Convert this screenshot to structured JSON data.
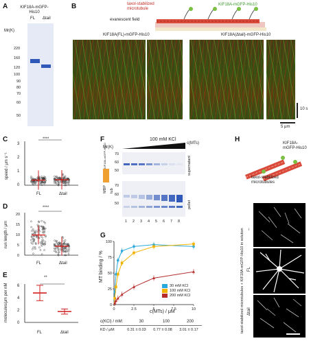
{
  "panels": [
    "A",
    "B",
    "C",
    "D",
    "E",
    "F",
    "G",
    "H"
  ],
  "panelA": {
    "title": "KIF18A-mGFP-His10",
    "lanes": [
      "FL",
      "Δtail"
    ],
    "mr_label": "Mr(K)",
    "markers": [
      "220",
      "160",
      "120",
      "100",
      "90",
      "80",
      "70",
      "60",
      "50"
    ]
  },
  "panelB": {
    "schematic_tubulin": "taxol-stabilized microtubule",
    "schematic_motor": "KIF18A-mGFP-His10",
    "schematic_field": "evanescent field",
    "left_title": "KIF18A(FL)-mGFP-His10",
    "right_title": "KIF18A(Δtail)-mGFP-His10",
    "time_scale": "10 s",
    "space_scale": "5 μm"
  },
  "panelC": {
    "ylabel": "speed / μm s⁻¹",
    "yticks": [
      "0",
      "1",
      "2",
      "3"
    ],
    "groups": [
      "FL",
      "Δtail"
    ],
    "sig": "****"
  },
  "panelD": {
    "ylabel": "run length / μm",
    "yticks": [
      "0",
      "5",
      "10",
      "15",
      "20"
    ],
    "groups": [
      "FL",
      "Δtail"
    ],
    "sig": "****"
  },
  "panelE": {
    "ylabel": "molecules/μm per nM",
    "yticks": [
      "0",
      "2",
      "4",
      "6"
    ],
    "groups": [
      "FL",
      "Δtail"
    ],
    "sig": "**"
  },
  "panelF": {
    "salt": "100 mM KCl",
    "conc": "c(MTs)",
    "mr_label": "Mr(K)",
    "markers_top": [
      "70",
      "60",
      "50"
    ],
    "markers_bottom": [
      "70",
      "60",
      "50"
    ],
    "lanes": [
      "1",
      "2",
      "3",
      "4",
      "5",
      "6",
      "7",
      "8"
    ],
    "top_label": "supernatant",
    "bottom_label": "pellet",
    "protein_label": "KIF18A-mGFP-His10",
    "mbp_label": "MBP",
    "std_label": "tub"
  },
  "panelG": {
    "ylabel": "MT binding / %",
    "xlabel": "c(MTs) / μM",
    "legend": [
      "30 mM KCl",
      "100 mM KCl",
      "200 mM KCl"
    ],
    "table_header": [
      "c(KCl) / mM:",
      "30",
      "100",
      "200"
    ],
    "table_row": [
      "KD / μM:",
      "0.31 ± 0.03",
      "0.77 ± 0.08",
      "3.01 ± 0.17"
    ]
  },
  "panelH": {
    "schematic_motor": "KIF18A-mGFP-His10",
    "schematic_tubulin": "taxol-stabilized microtubules",
    "side_label": "taxol-stabilized microtubules + KIF18A-mGFP-His10 in solution",
    "row_labels": [
      "–",
      "FL",
      "Δtail"
    ]
  },
  "colors": {
    "series30": "#29a8dc",
    "series100": "#f0b400",
    "series200": "#b72b2b",
    "errorbar": "#d11f1f",
    "gelblue": "#2f58b8"
  },
  "chart_data": [
    {
      "type": "scatter",
      "panel": "C",
      "ylabel": "speed / μm s⁻¹",
      "categories": [
        "FL",
        "Δtail"
      ],
      "means": [
        0.35,
        0.37
      ],
      "ylim": [
        0,
        3
      ]
    },
    {
      "type": "scatter",
      "panel": "D",
      "ylabel": "run length / μm",
      "categories": [
        "FL",
        "Δtail"
      ],
      "means": [
        9.5,
        4.2
      ],
      "ylim": [
        0,
        20
      ]
    },
    {
      "type": "bar",
      "panel": "E",
      "ylabel": "molecules/μm per nM",
      "categories": [
        "FL",
        "Δtail"
      ],
      "values": [
        4.6,
        1.7
      ],
      "errors": [
        1.2,
        0.4
      ],
      "ylim": [
        0,
        6
      ]
    },
    {
      "type": "line",
      "panel": "G",
      "xlabel": "c(MTs) / μM",
      "ylabel": "MT binding / %",
      "xlim": [
        0,
        10
      ],
      "ylim": [
        0,
        100
      ],
      "series": [
        {
          "name": "30 mM KCl",
          "x": [
            0.1,
            0.25,
            0.5,
            1,
            2.5,
            5,
            10
          ],
          "y": [
            20,
            48,
            70,
            85,
            92,
            95,
            92
          ]
        },
        {
          "name": "100 mM KCl",
          "x": [
            0.1,
            0.25,
            0.5,
            1,
            2.5,
            5,
            10
          ],
          "y": [
            10,
            28,
            48,
            66,
            82,
            92,
            96
          ]
        },
        {
          "name": "200 mM KCl",
          "x": [
            0.1,
            0.25,
            0.5,
            1,
            2.5,
            5,
            10
          ],
          "y": [
            2,
            6,
            10,
            16,
            28,
            42,
            52
          ]
        }
      ]
    }
  ]
}
